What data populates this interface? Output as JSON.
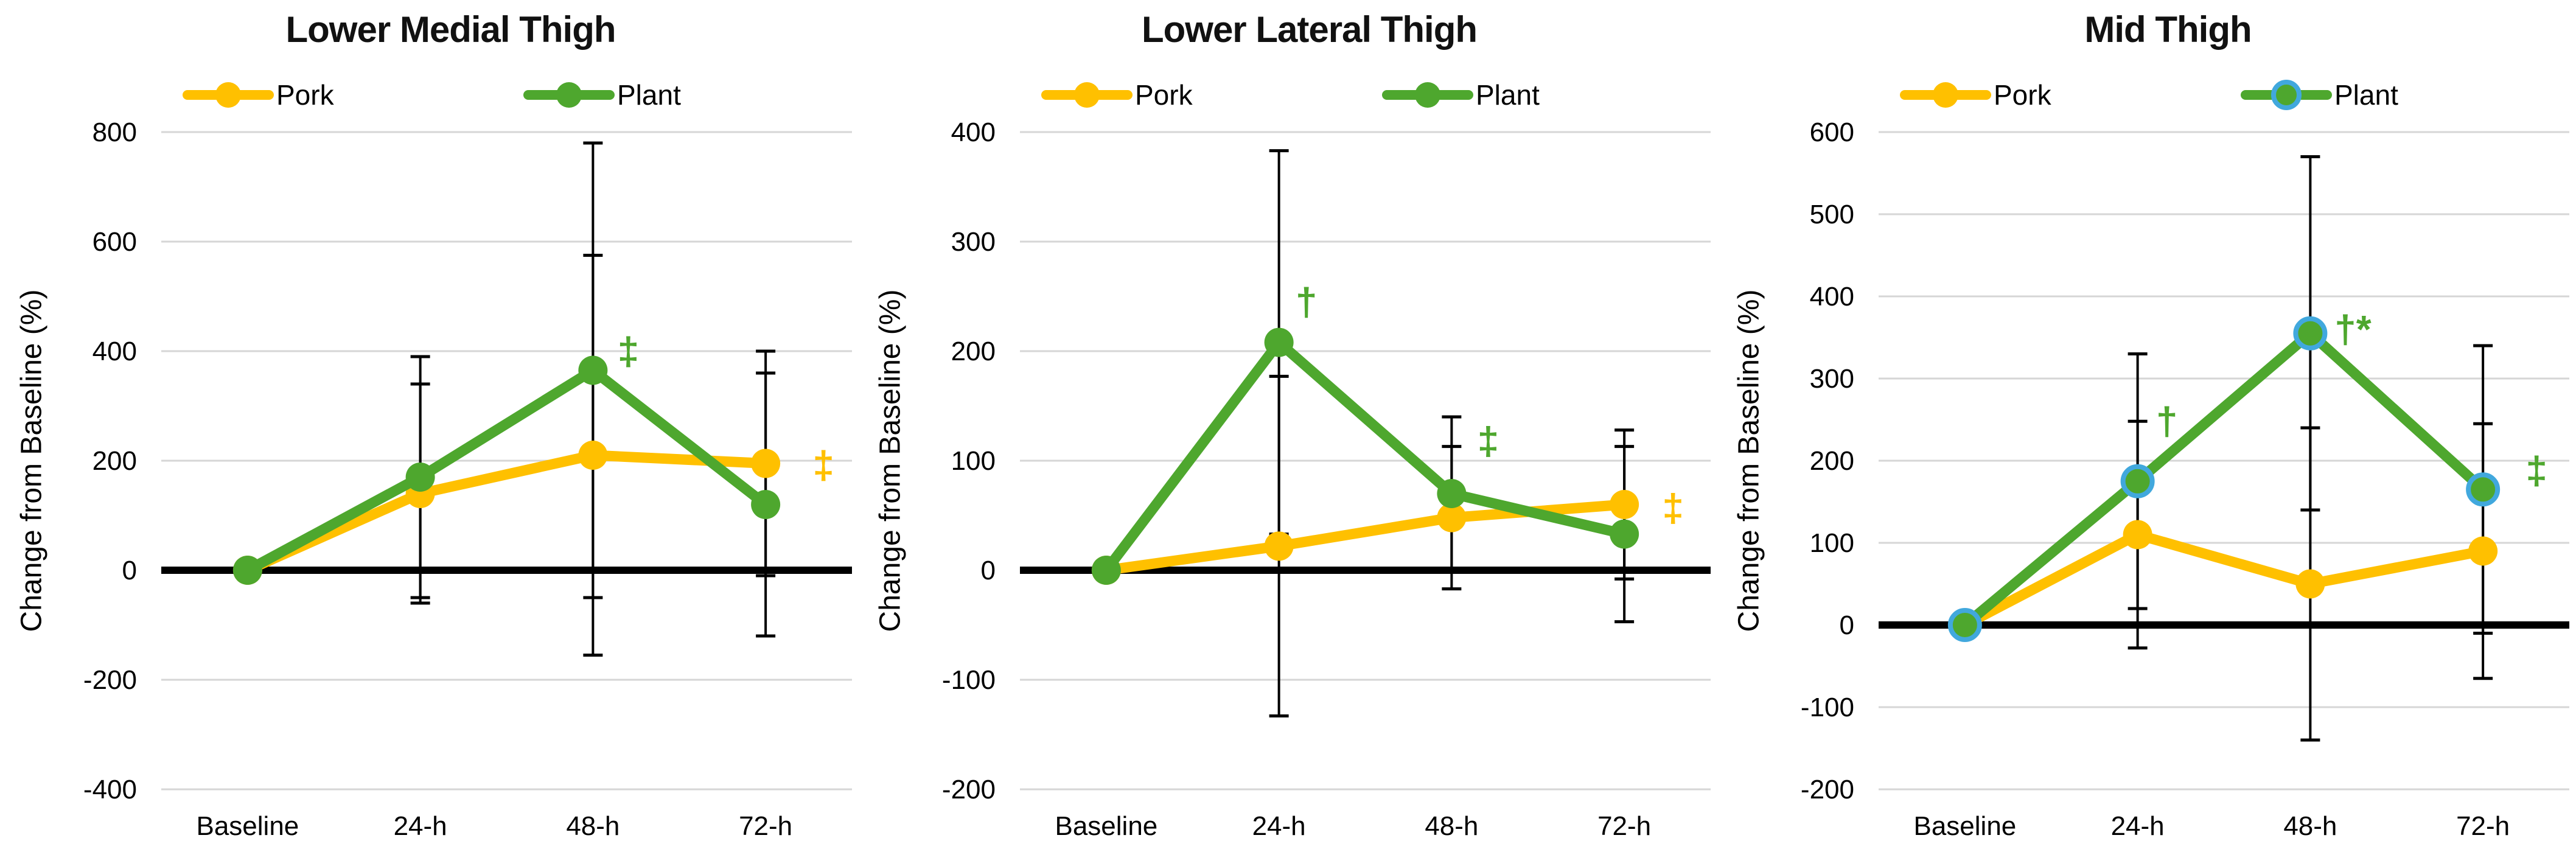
{
  "figure": {
    "background": "#FFFFFF",
    "colors": {
      "pork": "#FFC000",
      "plant": "#4EA72E",
      "plant_marker_ring": "#41A8DD",
      "gridline": "#D6D6D6",
      "axis": "#000000",
      "error_bar": "#000000",
      "text": "#000000"
    }
  },
  "chart_data": [
    {
      "type": "line",
      "title": "Lower Medial Thigh",
      "ylabel": "Change from Baseline (%)",
      "xlabel": "",
      "categories": [
        "Baseline",
        "24-h",
        "48-h",
        "72-h"
      ],
      "ylim": [
        -400,
        800
      ],
      "yticks": [
        800,
        600,
        400,
        200,
        0,
        -200,
        -400
      ],
      "grid": true,
      "legend_position": "top",
      "series": [
        {
          "name": "Pork",
          "color": "#FFC000",
          "values": [
            0,
            140,
            210,
            195
          ],
          "err": [
            0,
            200,
            365,
            205
          ]
        },
        {
          "name": "Plant",
          "color": "#4EA72E",
          "values": [
            0,
            170,
            365,
            120
          ],
          "err": [
            0,
            220,
            415,
            240
          ]
        }
      ],
      "annotations": [
        {
          "text": "‡",
          "color": "#4EA72E",
          "xi": 2,
          "y": 400,
          "dx": 58
        },
        {
          "text": "‡",
          "color": "#FFC000",
          "xi": 3,
          "y": 192,
          "dx": 95
        }
      ]
    },
    {
      "type": "line",
      "title": "Lower Lateral Thigh",
      "ylabel": "Change from Baseline (%)",
      "xlabel": "",
      "categories": [
        "Baseline",
        "24-h",
        "48-h",
        "72-h"
      ],
      "ylim": [
        -200,
        400
      ],
      "yticks": [
        400,
        300,
        200,
        100,
        0,
        -100,
        -200
      ],
      "grid": true,
      "legend_position": "top",
      "series": [
        {
          "name": "Pork",
          "color": "#FFC000",
          "values": [
            0,
            22,
            48,
            60
          ],
          "err": [
            0,
            155,
            65,
            68
          ]
        },
        {
          "name": "Plant",
          "color": "#4EA72E",
          "values": [
            0,
            208,
            70,
            33
          ],
          "err": [
            0,
            175,
            70,
            80
          ]
        }
      ],
      "annotations": [
        {
          "text": "†",
          "color": "#4EA72E",
          "xi": 1,
          "y": 245,
          "dx": 45
        },
        {
          "text": "‡",
          "color": "#4EA72E",
          "xi": 2,
          "y": 118,
          "dx": 60
        },
        {
          "text": "‡",
          "color": "#FFC000",
          "xi": 3,
          "y": 57,
          "dx": 80
        }
      ]
    },
    {
      "type": "line",
      "title": "Mid Thigh",
      "ylabel": "Change from Baseline (%)",
      "xlabel": "",
      "categories": [
        "Baseline",
        "24-h",
        "48-h",
        "72-h"
      ],
      "ylim": [
        -200,
        600
      ],
      "yticks": [
        600,
        500,
        400,
        300,
        200,
        100,
        0,
        -100,
        -200
      ],
      "grid": true,
      "legend_position": "top",
      "series": [
        {
          "name": "Pork",
          "color": "#FFC000",
          "values": [
            0,
            110,
            50,
            90
          ],
          "err": [
            0,
            138,
            190,
            155
          ]
        },
        {
          "name": "Plant",
          "color": "#4EA72E",
          "marker_ring": "#41A8DD",
          "values": [
            0,
            175,
            355,
            165
          ],
          "err": [
            0,
            155,
            215,
            175
          ]
        }
      ],
      "annotations": [
        {
          "text": "†",
          "color": "#4EA72E",
          "xi": 1,
          "y": 248,
          "dx": 48
        },
        {
          "text": "†*",
          "color": "#4EA72E",
          "xi": 2,
          "y": 360,
          "dx": 70
        },
        {
          "text": "‡",
          "color": "#4EA72E",
          "xi": 3,
          "y": 188,
          "dx": 88
        }
      ]
    }
  ]
}
